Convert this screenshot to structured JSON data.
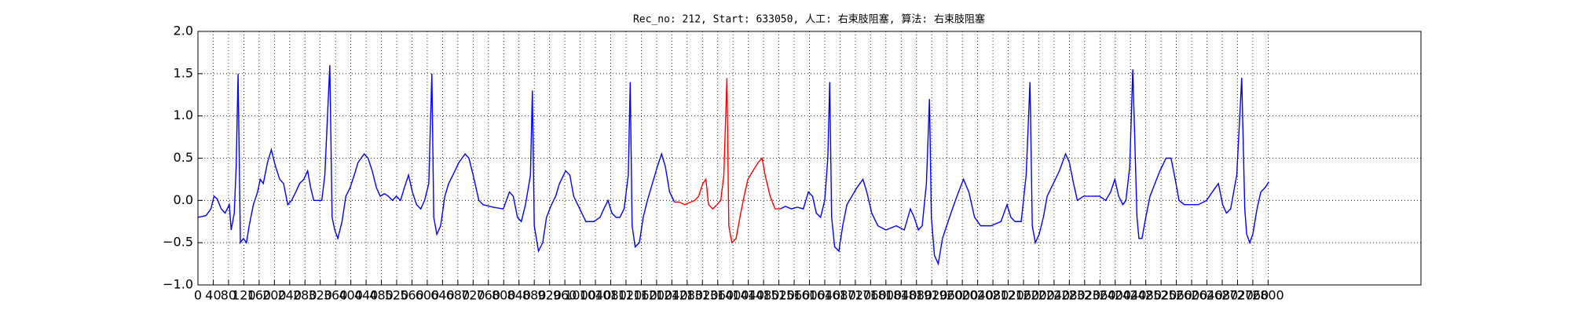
{
  "chart_data": {
    "type": "line",
    "title": "Rec_no: 212, Start: 633050, 人工: 右束肢阻塞, 算法: 右束肢阻塞",
    "xlim": [
      0,
      3200
    ],
    "xticks": [
      0,
      40,
      80,
      120,
      160,
      200,
      240,
      280,
      320,
      360,
      400,
      440,
      480,
      520,
      560,
      600,
      640,
      680,
      720,
      760,
      800,
      840,
      880,
      920,
      960,
      1000,
      1040,
      1080,
      1120,
      1160,
      1200,
      1240,
      1280,
      1320,
      1360,
      1400,
      1440,
      1480,
      1520,
      1560,
      1600,
      1640,
      1680,
      1720,
      1760,
      1800,
      1840,
      1880,
      1920,
      1960,
      2000,
      2040,
      2080,
      2120,
      2160,
      2200,
      2240,
      2280,
      2320,
      2360,
      2400,
      2440,
      2480,
      2520,
      2560,
      2600,
      2640,
      2680,
      2720,
      2760,
      2800
    ],
    "ylim": [
      -1.0,
      2.0
    ],
    "yticks": [
      {
        "value": -1.0,
        "label": "−1.0"
      },
      {
        "value": -0.5,
        "label": "−0.5"
      },
      {
        "value": 0.0,
        "label": "0.0"
      },
      {
        "value": 0.5,
        "label": "0.5"
      },
      {
        "value": 1.0,
        "label": "1.0"
      },
      {
        "value": 1.5,
        "label": "1.5"
      },
      {
        "value": 2.0,
        "label": "2.0"
      }
    ],
    "grid": true,
    "series": [
      {
        "color": "#0000ff",
        "x": [
          0,
          21,
          34,
          42,
          50,
          61,
          71,
          82,
          87,
          95,
          100,
          105,
          111,
          119,
          127,
          134,
          145,
          156,
          163,
          171,
          182,
          192,
          203,
          214,
          224,
          235,
          245,
          256,
          266,
          277,
          287,
          295,
          303,
          314,
          324,
          332,
          345,
          351,
          358,
          366,
          377,
          387,
          398,
          409,
          419,
          435,
          445,
          456,
          467,
          477,
          488,
          498,
          509,
          519,
          530,
          540,
          551,
          561,
          572,
          583,
          593,
          604,
          612,
          617,
          625,
          635,
          646,
          656,
          667,
          683,
          699,
          709,
          720,
          735,
          746,
          772,
          799,
          815,
          825,
          836,
          846,
          857,
          870,
          875,
          880,
          891,
          902,
          912,
          925,
          936,
          946,
          962,
          973,
          983,
          999,
          1015,
          1036,
          1052,
          1062,
          1073,
          1083,
          1094,
          1104,
          1115,
          1126,
          1131,
          1136,
          1144,
          1155,
          1165,
          1176,
          1189,
          1202,
          1213,
          1223,
          1234,
          1247
        ],
        "values": [
          -0.2,
          -0.18,
          -0.1,
          0.05,
          0.02,
          -0.1,
          -0.15,
          -0.05,
          -0.35,
          -0.15,
          0.4,
          1.5,
          -0.5,
          -0.45,
          -0.5,
          -0.3,
          -0.05,
          0.1,
          0.25,
          0.2,
          0.45,
          0.6,
          0.4,
          0.25,
          0.2,
          -0.05,
          0.0,
          0.1,
          0.2,
          0.25,
          0.35,
          0.15,
          0.0,
          0.0,
          0.0,
          0.3,
          1.6,
          -0.2,
          -0.35,
          -0.45,
          -0.25,
          0.05,
          0.15,
          0.3,
          0.45,
          0.55,
          0.5,
          0.35,
          0.15,
          0.05,
          0.08,
          0.05,
          0.0,
          0.05,
          0.0,
          0.15,
          0.3,
          0.1,
          -0.05,
          -0.1,
          0.0,
          0.2,
          1.5,
          -0.2,
          -0.4,
          -0.3,
          0.05,
          0.2,
          0.3,
          0.45,
          0.55,
          0.5,
          0.3,
          0.0,
          -0.05,
          -0.08,
          -0.1,
          0.1,
          0.05,
          -0.2,
          -0.25,
          -0.05,
          0.3,
          1.3,
          -0.3,
          -0.6,
          -0.5,
          -0.2,
          -0.05,
          0.05,
          0.2,
          0.35,
          0.3,
          0.05,
          -0.1,
          -0.25,
          -0.25,
          -0.2,
          -0.1,
          0.0,
          -0.15,
          -0.2,
          -0.2,
          -0.1,
          0.3,
          1.4,
          -0.3,
          -0.55,
          -0.5,
          -0.2,
          0.0,
          0.2,
          0.4,
          0.55,
          0.4,
          0.1,
          -0.02
        ]
      },
      {
        "color": "#ff0000",
        "x": [
          1247,
          1260,
          1273,
          1289,
          1300,
          1310,
          1321,
          1329,
          1336,
          1347,
          1358,
          1368,
          1376,
          1384,
          1389,
          1397,
          1408,
          1418,
          1429,
          1439,
          1452,
          1466,
          1476,
          1484,
          1497,
          1510,
          1524
        ],
        "values": [
          -0.02,
          -0.02,
          -0.05,
          -0.02,
          0.0,
          0.05,
          0.2,
          0.25,
          -0.05,
          -0.1,
          -0.05,
          0.0,
          0.3,
          1.45,
          -0.3,
          -0.5,
          -0.45,
          -0.2,
          0.05,
          0.25,
          0.35,
          0.45,
          0.5,
          0.3,
          0.05,
          -0.1,
          -0.1
        ]
      },
      {
        "color": "#0000ff",
        "x": [
          1524,
          1537,
          1553,
          1568,
          1584,
          1597,
          1608,
          1618,
          1629,
          1640,
          1648,
          1653,
          1658,
          1666,
          1677,
          1687,
          1698,
          1711,
          1724,
          1740,
          1750,
          1763,
          1779,
          1800,
          1827,
          1848,
          1864,
          1874,
          1885,
          1895,
          1906,
          1914,
          1919,
          1927,
          1937,
          1948,
          1959,
          1974,
          1990,
          2003,
          2017,
          2032,
          2048,
          2075,
          2101,
          2117,
          2127,
          2138,
          2154,
          2167,
          2177,
          2183,
          2191,
          2201,
          2212,
          2222,
          2238,
          2254,
          2270,
          2280,
          2291,
          2301,
          2317,
          2338,
          2359,
          2375,
          2388,
          2399,
          2409,
          2420,
          2428,
          2438,
          2446,
          2457,
          2462,
          2470,
          2480,
          2491,
          2504,
          2517,
          2533,
          2546,
          2557,
          2567,
          2581,
          2596,
          2618,
          2639,
          2654,
          2670,
          2681,
          2691,
          2702,
          2718,
          2731,
          2739,
          2744,
          2752,
          2760,
          2771,
          2781,
          2792,
          2802
        ],
        "values": [
          -0.1,
          -0.07,
          -0.1,
          -0.08,
          -0.1,
          0.1,
          0.05,
          -0.15,
          -0.2,
          0.0,
          0.5,
          1.4,
          -0.2,
          -0.55,
          -0.6,
          -0.3,
          -0.05,
          0.05,
          0.15,
          0.25,
          0.1,
          -0.15,
          -0.3,
          -0.35,
          -0.3,
          -0.35,
          -0.1,
          -0.2,
          -0.35,
          -0.3,
          0.2,
          1.2,
          -0.2,
          -0.65,
          -0.75,
          -0.45,
          -0.3,
          -0.1,
          0.1,
          0.25,
          0.1,
          -0.2,
          -0.3,
          -0.3,
          -0.25,
          -0.05,
          -0.2,
          -0.25,
          -0.25,
          0.3,
          1.4,
          -0.3,
          -0.5,
          -0.4,
          -0.2,
          0.05,
          0.2,
          0.35,
          0.55,
          0.45,
          0.2,
          0.0,
          0.05,
          0.05,
          0.05,
          0.0,
          0.1,
          0.25,
          0.05,
          -0.05,
          0.0,
          0.4,
          1.55,
          -0.2,
          -0.45,
          -0.45,
          -0.2,
          0.05,
          0.2,
          0.35,
          0.5,
          0.5,
          0.25,
          0.0,
          -0.05,
          -0.05,
          -0.05,
          0.0,
          0.1,
          0.2,
          -0.05,
          -0.15,
          -0.1,
          0.3,
          1.45,
          -0.1,
          -0.4,
          -0.5,
          -0.4,
          -0.1,
          0.1,
          0.15,
          0.22
        ]
      }
    ]
  }
}
